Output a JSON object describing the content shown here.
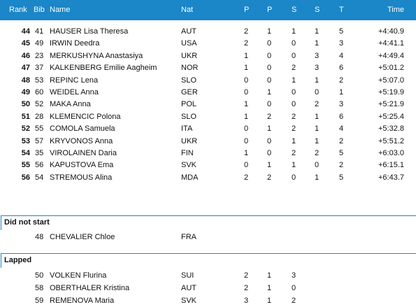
{
  "header": {
    "rank": "Rank",
    "bib": "Bib",
    "name": "Name",
    "nat": "Nat",
    "c1": "P",
    "c2": "P",
    "c3": "S",
    "c4": "S",
    "total": "T",
    "time": "Time"
  },
  "results": [
    {
      "rank": "44",
      "bib": "41",
      "name": "HAUSER Lisa Theresa",
      "nat": "AUT",
      "p1": "2",
      "p2": "1",
      "s1": "1",
      "s2": "1",
      "t": "5",
      "time": "+4:40.9"
    },
    {
      "rank": "45",
      "bib": "49",
      "name": "IRWIN Deedra",
      "nat": "USA",
      "p1": "2",
      "p2": "0",
      "s1": "0",
      "s2": "1",
      "t": "3",
      "time": "+4:41.1"
    },
    {
      "rank": "46",
      "bib": "23",
      "name": "MERKUSHYNA Anastasiya",
      "nat": "UKR",
      "p1": "1",
      "p2": "0",
      "s1": "0",
      "s2": "3",
      "t": "4",
      "time": "+4:49.4"
    },
    {
      "rank": "47",
      "bib": "37",
      "name": "KALKENBERG Emilie Aagheim",
      "nat": "NOR",
      "p1": "1",
      "p2": "0",
      "s1": "2",
      "s2": "3",
      "t": "6",
      "time": "+5:01.2"
    },
    {
      "rank": "48",
      "bib": "53",
      "name": "REPINC Lena",
      "nat": "SLO",
      "p1": "0",
      "p2": "0",
      "s1": "1",
      "s2": "1",
      "t": "2",
      "time": "+5:07.0"
    },
    {
      "rank": "49",
      "bib": "60",
      "name": "WEIDEL Anna",
      "nat": "GER",
      "p1": "0",
      "p2": "1",
      "s1": "0",
      "s2": "0",
      "t": "1",
      "time": "+5:19.9"
    },
    {
      "rank": "50",
      "bib": "52",
      "name": "MAKA Anna",
      "nat": "POL",
      "p1": "1",
      "p2": "0",
      "s1": "0",
      "s2": "2",
      "t": "3",
      "time": "+5:21.9"
    },
    {
      "rank": "51",
      "bib": "28",
      "name": "KLEMENCIC Polona",
      "nat": "SLO",
      "p1": "1",
      "p2": "2",
      "s1": "2",
      "s2": "1",
      "t": "6",
      "time": "+5:25.4"
    },
    {
      "rank": "52",
      "bib": "55",
      "name": "COMOLA Samuela",
      "nat": "ITA",
      "p1": "0",
      "p2": "1",
      "s1": "2",
      "s2": "1",
      "t": "4",
      "time": "+5:32.8"
    },
    {
      "rank": "53",
      "bib": "57",
      "name": "KRYVONOS Anna",
      "nat": "UKR",
      "p1": "0",
      "p2": "0",
      "s1": "1",
      "s2": "1",
      "t": "2",
      "time": "+5:51.2"
    },
    {
      "rank": "54",
      "bib": "35",
      "name": "VIROLAINEN Daria",
      "nat": "FIN",
      "p1": "1",
      "p2": "0",
      "s1": "2",
      "s2": "2",
      "t": "5",
      "time": "+6:03.0"
    },
    {
      "rank": "55",
      "bib": "56",
      "name": "KAPUSTOVA Ema",
      "nat": "SVK",
      "p1": "0",
      "p2": "1",
      "s1": "1",
      "s2": "0",
      "t": "2",
      "time": "+6:15.1"
    },
    {
      "rank": "56",
      "bib": "54",
      "name": "STREMOUS Alina",
      "nat": "MDA",
      "p1": "2",
      "p2": "2",
      "s1": "0",
      "s2": "1",
      "t": "5",
      "time": "+6:43.7"
    }
  ],
  "did_not_start": {
    "title": "Did not start",
    "rows": [
      {
        "bib": "48",
        "name": "CHEVALIER Chloe",
        "nat": "FRA"
      }
    ]
  },
  "lapped": {
    "title": "Lapped",
    "rows": [
      {
        "bib": "50",
        "name": "VOLKEN Flurina",
        "nat": "SUI",
        "p1": "2",
        "p2": "1",
        "s1": "3"
      },
      {
        "bib": "58",
        "name": "OBERTHALER Kristina",
        "nat": "AUT",
        "p1": "2",
        "p2": "1",
        "s1": "0"
      },
      {
        "bib": "59",
        "name": "REMENOVA Maria",
        "nat": "SVK",
        "p1": "3",
        "p2": "1",
        "s1": "2"
      }
    ]
  }
}
